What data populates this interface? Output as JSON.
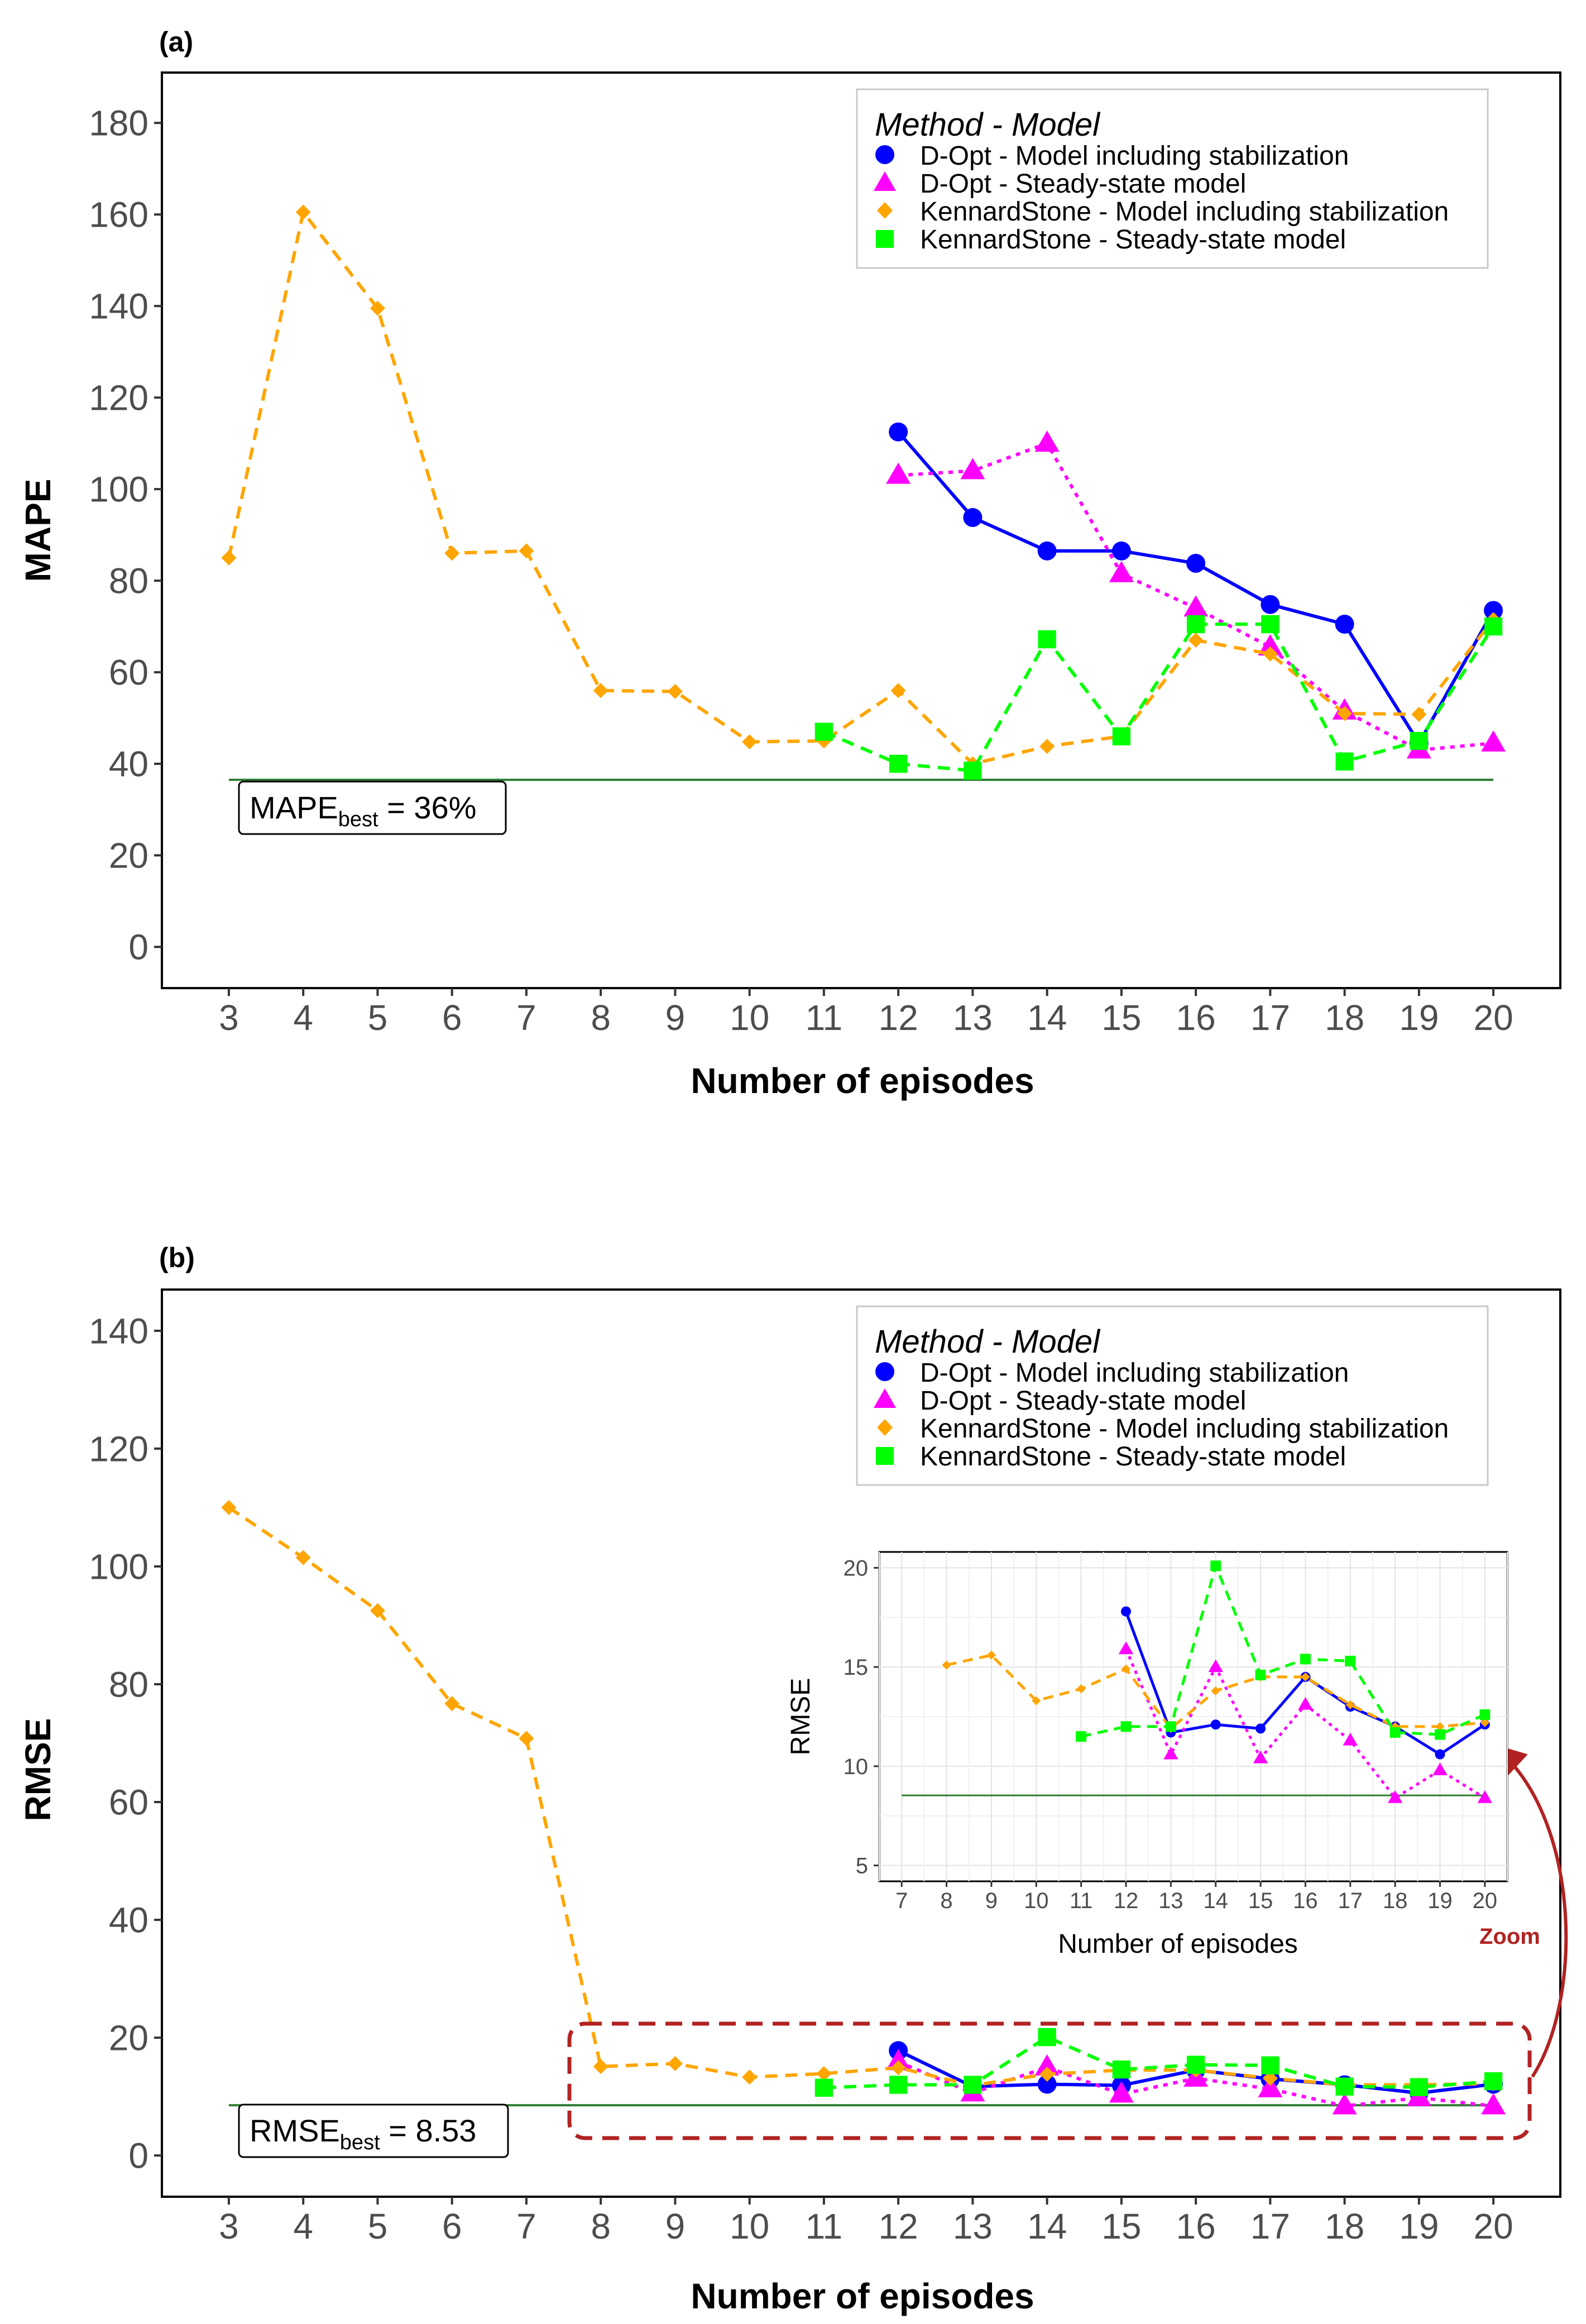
{
  "panel_a": {
    "tag": "(a)",
    "best": {
      "prefix": "MAPE",
      "sub": "best",
      "suffix": " = 36%",
      "value": 36.5
    }
  },
  "panel_b": {
    "tag": "(b)",
    "best": {
      "prefix": "RMSE",
      "sub": "best",
      "suffix": " = 8.53",
      "value": 8.53
    },
    "zoom_label": "Zoom"
  },
  "legend": {
    "title": "Method - Model",
    "items": [
      "D-Opt - Model including stabilization",
      "D-Opt - Steady-state model",
      "KennardStone - Model including stabilization",
      "KennardStone - Steady-state model"
    ]
  },
  "colors": {
    "dopt_stab": "#0000FF",
    "dopt_ss": "#FF00FF",
    "ks_stab": "#FFA500",
    "ks_ss": "#00FF00",
    "best_line": "#2E7D32",
    "zoom": "#B22222"
  },
  "chart_data": [
    {
      "type": "line",
      "title": "(a)",
      "xlabel": "Number of episodes",
      "ylabel": "MAPE",
      "xlim": [
        2.1,
        20.9
      ],
      "ylim": [
        -9,
        191
      ],
      "x_ticks": [
        "3",
        "4",
        "5",
        "6",
        "7",
        "8",
        "9",
        "10",
        "11",
        "12",
        "13",
        "14",
        "15",
        "16",
        "17",
        "18",
        "19",
        "20"
      ],
      "y_ticks": [
        "0",
        "20",
        "40",
        "60",
        "80",
        "100",
        "120",
        "140",
        "160",
        "180"
      ],
      "hline": 36.5,
      "series": [
        {
          "name": "D-Opt - Model including stabilization",
          "x": [
            12,
            13,
            14,
            15,
            16,
            17,
            18,
            19,
            20
          ],
          "values": [
            112.5,
            93.8,
            86.5,
            86.5,
            83.8,
            74.8,
            70.5,
            44.5,
            73.5
          ]
        },
        {
          "name": "D-Opt - Steady-state model",
          "x": [
            12,
            13,
            14,
            15,
            16,
            17,
            18,
            19,
            20
          ],
          "values": [
            103,
            104,
            110,
            81.5,
            74,
            65.5,
            51.5,
            43,
            44.5
          ]
        },
        {
          "name": "KennardStone - Model including stabilization",
          "x": [
            3,
            4,
            5,
            6,
            7,
            8,
            9,
            10,
            11,
            12,
            13,
            14,
            15,
            16,
            17,
            18,
            19,
            20
          ],
          "values": [
            85,
            160.5,
            139.5,
            86,
            86.5,
            56,
            55.8,
            44.8,
            45,
            56,
            40,
            43.8,
            46,
            67,
            64,
            51,
            50.8,
            71.5
          ]
        },
        {
          "name": "KennardStone - Steady-state model",
          "x": [
            11,
            12,
            13,
            14,
            15,
            16,
            17,
            18,
            19,
            20
          ],
          "values": [
            47,
            40,
            38.5,
            67.2,
            46,
            70.5,
            70.5,
            40.5,
            45,
            70
          ]
        }
      ]
    },
    {
      "type": "line",
      "title": "(b)",
      "xlabel": "Number of episodes",
      "ylabel": "RMSE",
      "xlim": [
        2.1,
        20.9
      ],
      "ylim": [
        -7,
        147
      ],
      "x_ticks": [
        "3",
        "4",
        "5",
        "6",
        "7",
        "8",
        "9",
        "10",
        "11",
        "12",
        "13",
        "14",
        "15",
        "16",
        "17",
        "18",
        "19",
        "20"
      ],
      "y_ticks": [
        "0",
        "20",
        "40",
        "60",
        "80",
        "100",
        "120",
        "140"
      ],
      "hline": 8.53,
      "series": [
        {
          "name": "D-Opt - Model including stabilization",
          "x": [
            12,
            13,
            14,
            15,
            16,
            17,
            18,
            19,
            20
          ],
          "values": [
            17.8,
            11.7,
            12.1,
            11.9,
            14.5,
            13,
            12,
            10.6,
            12.1
          ]
        },
        {
          "name": "D-Opt - Steady-state model",
          "x": [
            12,
            13,
            14,
            15,
            16,
            17,
            18,
            19,
            20
          ],
          "values": [
            15.9,
            10.6,
            15,
            10.4,
            13.1,
            11.3,
            8.4,
            9.8,
            8.4
          ]
        },
        {
          "name": "KennardStone - Model including stabilization",
          "x": [
            3,
            4,
            5,
            6,
            7,
            8,
            9,
            10,
            11,
            12,
            13,
            14,
            15,
            16,
            17,
            18,
            19,
            20
          ],
          "values": [
            110,
            101.5,
            92.5,
            76.7,
            70.8,
            15.1,
            15.6,
            13.3,
            13.9,
            14.9,
            11.9,
            13.8,
            14.5,
            14.5,
            13.1,
            12,
            12,
            12.2
          ]
        },
        {
          "name": "KennardStone - Steady-state model",
          "x": [
            11,
            12,
            13,
            14,
            15,
            16,
            17,
            18,
            19,
            20
          ],
          "values": [
            11.5,
            12,
            12,
            20.1,
            14.6,
            15.4,
            15.3,
            11.7,
            11.6,
            12.6
          ]
        }
      ]
    },
    {
      "type": "line",
      "title": "Zoom inset",
      "xlabel": "Number of episodes",
      "ylabel": "RMSE",
      "xlim": [
        6.5,
        20.5
      ],
      "ylim": [
        4.2,
        20.8
      ],
      "x_ticks": [
        "7",
        "8",
        "9",
        "10",
        "11",
        "12",
        "13",
        "14",
        "15",
        "16",
        "17",
        "18",
        "19",
        "20"
      ],
      "y_ticks": [
        "5",
        "10",
        "15",
        "20"
      ],
      "hline": 8.53,
      "series": [
        {
          "name": "D-Opt - Model including stabilization",
          "x": [
            12,
            13,
            14,
            15,
            16,
            17,
            18,
            19,
            20
          ],
          "values": [
            17.8,
            11.7,
            12.1,
            11.9,
            14.5,
            13,
            12,
            10.6,
            12.1
          ]
        },
        {
          "name": "D-Opt - Steady-state model",
          "x": [
            12,
            13,
            14,
            15,
            16,
            17,
            18,
            19,
            20
          ],
          "values": [
            15.9,
            10.6,
            15,
            10.4,
            13.1,
            11.3,
            8.4,
            9.8,
            8.4
          ]
        },
        {
          "name": "KennardStone - Model including stabilization",
          "x": [
            8,
            9,
            10,
            11,
            12,
            13,
            14,
            15,
            16,
            17,
            18,
            19,
            20
          ],
          "values": [
            15.1,
            15.6,
            13.3,
            13.9,
            14.9,
            11.9,
            13.8,
            14.5,
            14.5,
            13.1,
            12,
            12,
            12.2
          ]
        },
        {
          "name": "KennardStone - Steady-state model",
          "x": [
            11,
            12,
            13,
            14,
            15,
            16,
            17,
            18,
            19,
            20
          ],
          "values": [
            11.5,
            12,
            12,
            20.1,
            14.6,
            15.4,
            15.3,
            11.7,
            11.6,
            12.6
          ]
        }
      ]
    }
  ]
}
